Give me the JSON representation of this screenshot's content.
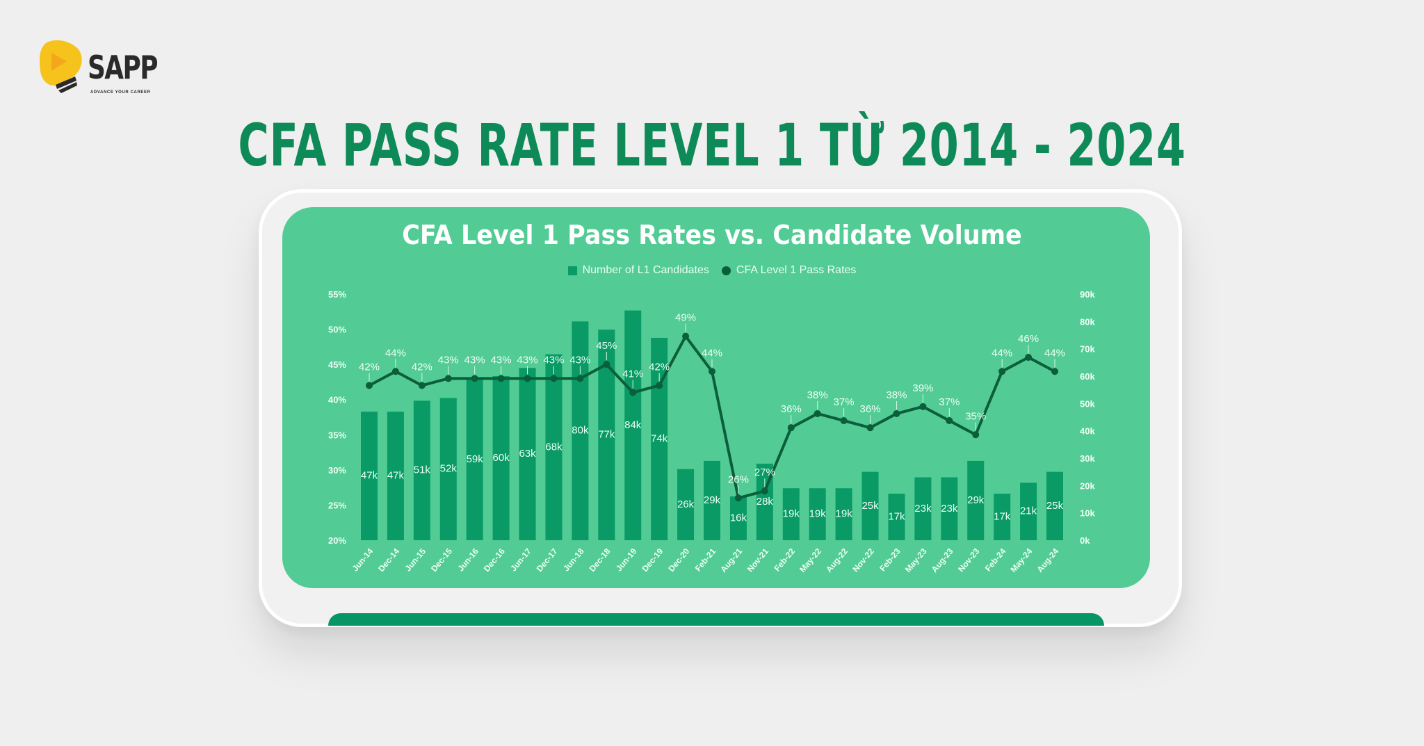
{
  "brand": {
    "name": "SAPP",
    "tagline": "ADVANCE YOUR CAREER",
    "colors": {
      "logo_yellow": "#f6c21c",
      "logo_orange": "#f4a71b",
      "text_dark": "#2a2a2a"
    }
  },
  "page": {
    "title": "CFA PASS RATE LEVEL 1 TỪ 2014 - 2024",
    "colors": {
      "title": "#0e8a59",
      "background": "#efefef",
      "card": "#52cb94",
      "bar": "#099a66",
      "line": "#0b5e3a"
    }
  },
  "chart": {
    "title": "CFA Level 1 Pass Rates vs. Candidate Volume",
    "legend": [
      {
        "label": "Number of L1 Candidates",
        "marker": "square"
      },
      {
        "label": "CFA Level 1 Pass Rates",
        "marker": "circle"
      }
    ]
  },
  "chart_data": {
    "type": "bar",
    "combo": "bar + line (dual axis)",
    "title": "CFA Level 1 Pass Rates vs. Candidate Volume",
    "xlabel": "",
    "ylabel": "",
    "categories": [
      "Jun-14",
      "Dec-14",
      "Jun-15",
      "Dec-15",
      "Jun-16",
      "Dec-16",
      "Jun-17",
      "Dec-17",
      "Jun-18",
      "Dec-18",
      "Jun-19",
      "Dec-19",
      "Dec-20",
      "Feb-21",
      "Aug-21",
      "Nov-21",
      "Feb-22",
      "May-22",
      "Aug-22",
      "Nov-22",
      "Feb-23",
      "May-23",
      "Aug-23",
      "Nov-23",
      "Feb-24",
      "May-24",
      "Aug-24"
    ],
    "bar_categories": [
      "Jun-14",
      "Dec-14",
      "Jun-15",
      "Dec-15",
      "Jun-16",
      "Dec-16",
      "Jun-17",
      "Dec-17",
      "Jun-18",
      "Dec-18",
      "Jun-19",
      "Dec-19",
      "Dec-20",
      "Feb-21",
      "Aug-21",
      "Nov-21",
      "Feb-22",
      "May-22",
      "Aug-22",
      "Nov-22",
      "Feb-23",
      "May-23",
      "Aug-23",
      "Nov-23",
      "Feb-24",
      "May-24",
      "Aug-24"
    ],
    "series": [
      {
        "name": "Number of L1 Candidates",
        "type": "bar",
        "axis": "right",
        "values": [
          47,
          47,
          51,
          52,
          59,
          60,
          63,
          68,
          80,
          77,
          84,
          74,
          26,
          29,
          16,
          28,
          19,
          19,
          19,
          25,
          17,
          23,
          23,
          29,
          17,
          21,
          25
        ],
        "labels": [
          "47k",
          "47k",
          "51k",
          "52k",
          "59k",
          "60k",
          "63k",
          "68k",
          "80k",
          "77k",
          "84k",
          "74k",
          "26k",
          "29k",
          "16k",
          "28k",
          "19k",
          "19k",
          "19k",
          "25k",
          "17k",
          "23k",
          "23k",
          "29k",
          "17k",
          "21k",
          "25k"
        ],
        "unit": "thousands"
      },
      {
        "name": "CFA Level 1 Pass Rates",
        "type": "line",
        "axis": "left",
        "values": [
          42,
          44,
          42,
          43,
          43,
          43,
          43,
          43,
          43,
          45,
          41,
          42,
          49,
          44,
          26,
          27,
          36,
          38,
          37,
          36,
          38,
          39,
          37,
          35,
          44,
          46,
          44
        ],
        "labels": [
          "42%",
          "44%",
          "42%",
          "43%",
          "43%",
          "43%",
          "43%",
          "43%",
          "43%",
          "45%",
          "41%",
          "42%",
          "49%",
          "44%",
          "26%",
          "27%",
          "36%",
          "38%",
          "37%",
          "36%",
          "38%",
          "39%",
          "37%",
          "35%",
          "44%",
          "46%",
          "44%"
        ],
        "unit": "%"
      }
    ],
    "left_axis": {
      "ticks": [
        "20%",
        "25%",
        "30%",
        "35%",
        "40%",
        "45%",
        "50%",
        "55%"
      ],
      "ylim": [
        20,
        55
      ]
    },
    "right_axis": {
      "ticks": [
        "0k",
        "10k",
        "20k",
        "30k",
        "40k",
        "50k",
        "60k",
        "70k",
        "80k",
        "90k"
      ],
      "ylim": [
        0,
        90
      ]
    },
    "grid": false,
    "legend_position": "top-center"
  }
}
